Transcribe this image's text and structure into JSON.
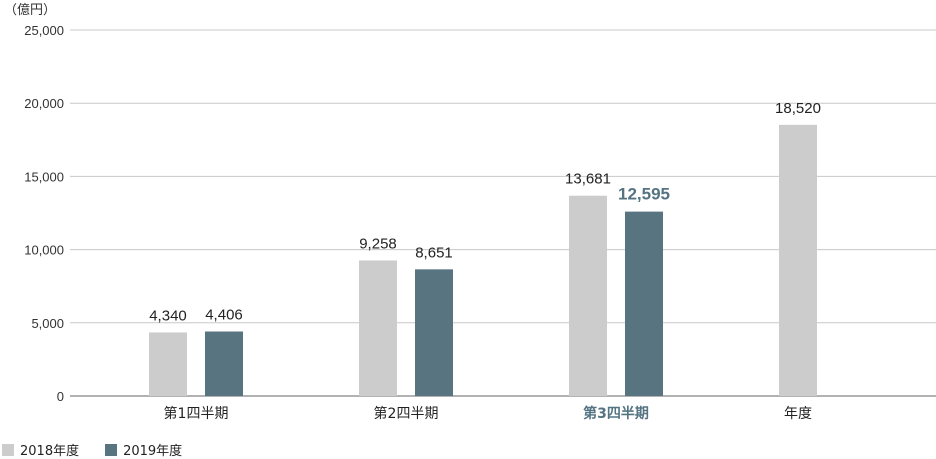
{
  "chart_data": {
    "type": "bar",
    "unit_label": "（億円）",
    "categories": [
      "第1四半期",
      "第2四半期",
      "第3四半期",
      "年度"
    ],
    "highlight_category": 2,
    "series": [
      {
        "name": "2018年度",
        "color": "#cccccc",
        "values": [
          4340,
          9258,
          13681,
          18520
        ],
        "labels": [
          "4,340",
          "9,258",
          "13,681",
          "18,520"
        ]
      },
      {
        "name": "2019年度",
        "color": "#587480",
        "values": [
          4406,
          8651,
          12595,
          null
        ],
        "labels": [
          "4,406",
          "8,651",
          "12,595",
          ""
        ]
      }
    ],
    "y_ticks": [
      0,
      5000,
      10000,
      15000,
      20000,
      25000
    ],
    "y_tick_labels": [
      "0",
      "5,000",
      "10,000",
      "15,000",
      "20,000",
      "25,000"
    ],
    "ylim": [
      0,
      25000
    ],
    "grid": true,
    "legend_position": "bottom-left",
    "highlight_color": "#547482"
  }
}
